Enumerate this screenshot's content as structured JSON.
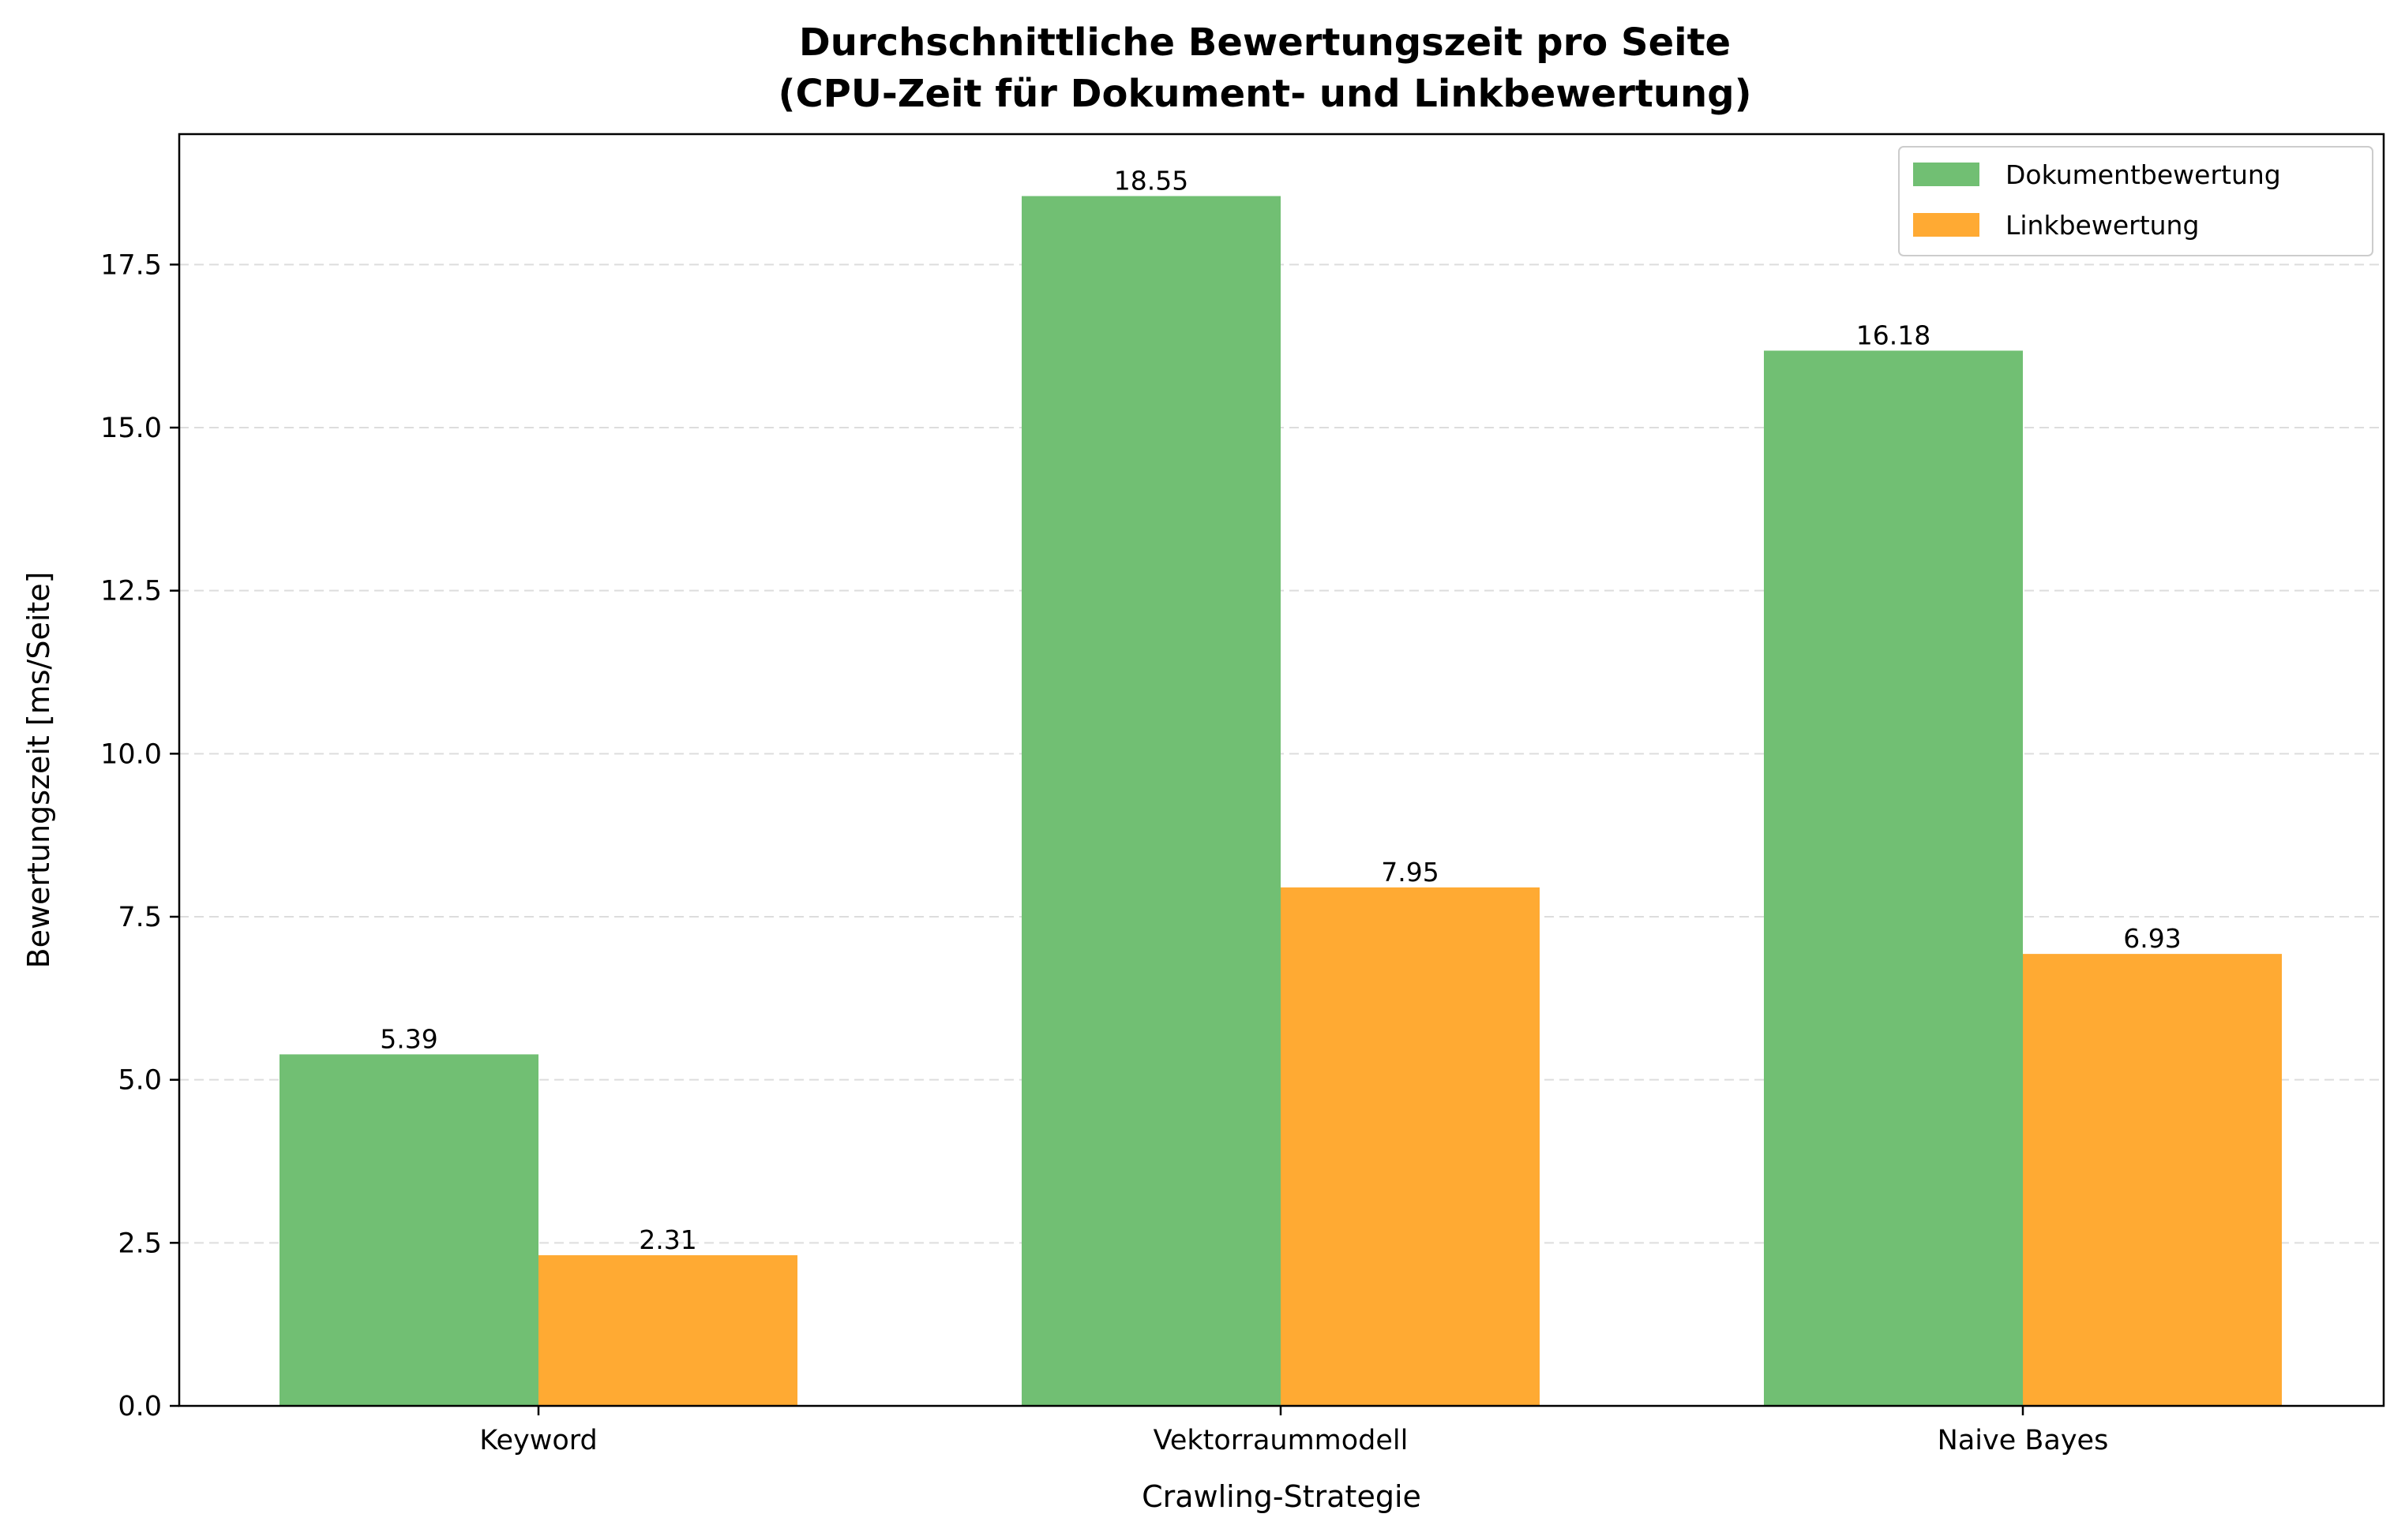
{
  "chart_data": {
    "type": "bar",
    "title": "Durchschnittliche Bewertungszeit pro Seite",
    "subtitle": "(CPU-Zeit für Dokument- und Linkbewertung)",
    "xlabel": "Crawling-Strategie",
    "ylabel": "Bewertungszeit [ms/Seite]",
    "categories": [
      "Keyword",
      "Vektorraummodell",
      "Naive Bayes"
    ],
    "series": [
      {
        "name": "Dokumentbewertung",
        "values": [
          5.39,
          18.55,
          16.18
        ],
        "labels": [
          "5.39",
          "18.55",
          "16.18"
        ],
        "color": "#71bf73"
      },
      {
        "name": "Linkbewertung",
        "values": [
          2.31,
          7.95,
          6.93
        ],
        "labels": [
          "2.31",
          "7.95",
          "6.93"
        ],
        "color": "#ffaa33"
      }
    ],
    "ylim": [
      0,
      19.5
    ],
    "yticks": [
      0,
      2.5,
      5,
      7.5,
      10,
      12.5,
      15,
      17.5
    ],
    "ytick_labels": [
      "0.0",
      "2.5",
      "5.0",
      "7.5",
      "10.0",
      "12.5",
      "15.0",
      "17.5"
    ],
    "grid": "y-dashed",
    "legend": "top-right"
  }
}
